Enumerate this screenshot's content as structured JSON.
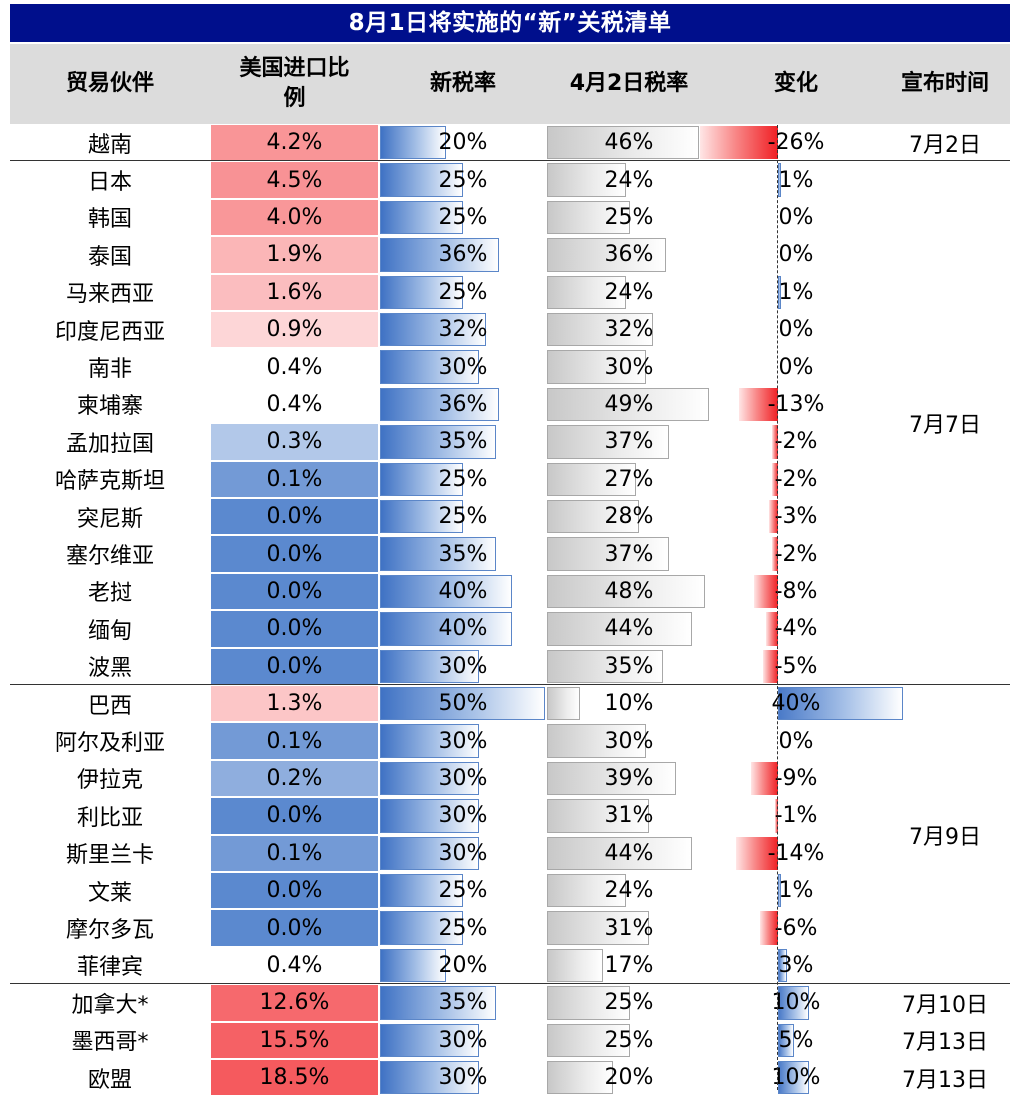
{
  "title": "8月1日将实施的“新”关税清单",
  "headers": {
    "partner": "贸易伙伴",
    "share_line1": "美国进口比",
    "share_line2": "例",
    "new_rate": "新税率",
    "apr_rate": "4月2日税率",
    "change": "变化",
    "date": "宣布时间"
  },
  "chart_data": {
    "type": "table",
    "title": "8月1日将实施的“新”关税清单",
    "columns": [
      "贸易伙伴",
      "美国进口比例",
      "新税率",
      "4月2日税率",
      "变化",
      "宣布时间"
    ],
    "rows": [
      {
        "partner": "越南",
        "share": "4.2%",
        "share_value": 4.2,
        "new_rate": "20%",
        "new_value": 20,
        "apr_rate": "46%",
        "apr_value": 46,
        "change": "-26%",
        "change_value": -26
      },
      {
        "partner": "日本",
        "share": "4.5%",
        "share_value": 4.5,
        "new_rate": "25%",
        "new_value": 25,
        "apr_rate": "24%",
        "apr_value": 24,
        "change": "1%",
        "change_value": 1
      },
      {
        "partner": "韩国",
        "share": "4.0%",
        "share_value": 4.0,
        "new_rate": "25%",
        "new_value": 25,
        "apr_rate": "25%",
        "apr_value": 25,
        "change": "0%",
        "change_value": 0
      },
      {
        "partner": "泰国",
        "share": "1.9%",
        "share_value": 1.9,
        "new_rate": "36%",
        "new_value": 36,
        "apr_rate": "36%",
        "apr_value": 36,
        "change": "0%",
        "change_value": 0
      },
      {
        "partner": "马来西亚",
        "share": "1.6%",
        "share_value": 1.6,
        "new_rate": "25%",
        "new_value": 25,
        "apr_rate": "24%",
        "apr_value": 24,
        "change": "1%",
        "change_value": 1
      },
      {
        "partner": "印度尼西亚",
        "share": "0.9%",
        "share_value": 0.9,
        "new_rate": "32%",
        "new_value": 32,
        "apr_rate": "32%",
        "apr_value": 32,
        "change": "0%",
        "change_value": 0
      },
      {
        "partner": "南非",
        "share": "0.4%",
        "share_value": 0.4,
        "new_rate": "30%",
        "new_value": 30,
        "apr_rate": "30%",
        "apr_value": 30,
        "change": "0%",
        "change_value": 0
      },
      {
        "partner": "柬埔寨",
        "share": "0.4%",
        "share_value": 0.4,
        "new_rate": "36%",
        "new_value": 36,
        "apr_rate": "49%",
        "apr_value": 49,
        "change": "-13%",
        "change_value": -13
      },
      {
        "partner": "孟加拉国",
        "share": "0.3%",
        "share_value": 0.3,
        "new_rate": "35%",
        "new_value": 35,
        "apr_rate": "37%",
        "apr_value": 37,
        "change": "-2%",
        "change_value": -2
      },
      {
        "partner": "哈萨克斯坦",
        "share": "0.1%",
        "share_value": 0.1,
        "new_rate": "25%",
        "new_value": 25,
        "apr_rate": "27%",
        "apr_value": 27,
        "change": "-2%",
        "change_value": -2
      },
      {
        "partner": "突尼斯",
        "share": "0.0%",
        "share_value": 0.0,
        "new_rate": "25%",
        "new_value": 25,
        "apr_rate": "28%",
        "apr_value": 28,
        "change": "-3%",
        "change_value": -3
      },
      {
        "partner": "塞尔维亚",
        "share": "0.0%",
        "share_value": 0.0,
        "new_rate": "35%",
        "new_value": 35,
        "apr_rate": "37%",
        "apr_value": 37,
        "change": "-2%",
        "change_value": -2
      },
      {
        "partner": "老挝",
        "share": "0.0%",
        "share_value": 0.0,
        "new_rate": "40%",
        "new_value": 40,
        "apr_rate": "48%",
        "apr_value": 48,
        "change": "-8%",
        "change_value": -8
      },
      {
        "partner": "缅甸",
        "share": "0.0%",
        "share_value": 0.0,
        "new_rate": "40%",
        "new_value": 40,
        "apr_rate": "44%",
        "apr_value": 44,
        "change": "-4%",
        "change_value": -4
      },
      {
        "partner": "波黑",
        "share": "0.0%",
        "share_value": 0.0,
        "new_rate": "30%",
        "new_value": 30,
        "apr_rate": "35%",
        "apr_value": 35,
        "change": "-5%",
        "change_value": -5
      },
      {
        "partner": "巴西",
        "share": "1.3%",
        "share_value": 1.3,
        "new_rate": "50%",
        "new_value": 50,
        "apr_rate": "10%",
        "apr_value": 10,
        "change": "40%",
        "change_value": 40
      },
      {
        "partner": "阿尔及利亚",
        "share": "0.1%",
        "share_value": 0.1,
        "new_rate": "30%",
        "new_value": 30,
        "apr_rate": "30%",
        "apr_value": 30,
        "change": "0%",
        "change_value": 0
      },
      {
        "partner": "伊拉克",
        "share": "0.2%",
        "share_value": 0.2,
        "new_rate": "30%",
        "new_value": 30,
        "apr_rate": "39%",
        "apr_value": 39,
        "change": "-9%",
        "change_value": -9
      },
      {
        "partner": "利比亚",
        "share": "0.0%",
        "share_value": 0.0,
        "new_rate": "30%",
        "new_value": 30,
        "apr_rate": "31%",
        "apr_value": 31,
        "change": "-1%",
        "change_value": -1
      },
      {
        "partner": "斯里兰卡",
        "share": "0.1%",
        "share_value": 0.1,
        "new_rate": "30%",
        "new_value": 30,
        "apr_rate": "44%",
        "apr_value": 44,
        "change": "-14%",
        "change_value": -14
      },
      {
        "partner": "文莱",
        "share": "0.0%",
        "share_value": 0.0,
        "new_rate": "25%",
        "new_value": 25,
        "apr_rate": "24%",
        "apr_value": 24,
        "change": "1%",
        "change_value": 1
      },
      {
        "partner": "摩尔多瓦",
        "share": "0.0%",
        "share_value": 0.0,
        "new_rate": "25%",
        "new_value": 25,
        "apr_rate": "31%",
        "apr_value": 31,
        "change": "-6%",
        "change_value": -6
      },
      {
        "partner": "菲律宾",
        "share": "0.4%",
        "share_value": 0.4,
        "new_rate": "20%",
        "new_value": 20,
        "apr_rate": "17%",
        "apr_value": 17,
        "change": "3%",
        "change_value": 3
      },
      {
        "partner": "加拿大*",
        "share": "12.6%",
        "share_value": 12.6,
        "new_rate": "35%",
        "new_value": 35,
        "apr_rate": "25%",
        "apr_value": 25,
        "change": "10%",
        "change_value": 10
      },
      {
        "partner": "墨西哥*",
        "share": "15.5%",
        "share_value": 15.5,
        "new_rate": "30%",
        "new_value": 30,
        "apr_rate": "25%",
        "apr_value": 25,
        "change": "5%",
        "change_value": 5
      },
      {
        "partner": "欧盟",
        "share": "18.5%",
        "share_value": 18.5,
        "new_rate": "30%",
        "new_value": 30,
        "apr_rate": "20%",
        "apr_value": 20,
        "change": "10%",
        "change_value": 10
      }
    ],
    "date_groups": [
      {
        "label": "7月2日",
        "from": 0,
        "to": 0
      },
      {
        "label": "7月7日",
        "from": 1,
        "to": 14
      },
      {
        "label": "7月9日",
        "from": 15,
        "to": 22
      },
      {
        "label": "7月10日",
        "from": 23,
        "to": 23
      },
      {
        "label": "7月13日",
        "from": 24,
        "to": 24
      },
      {
        "label": "7月13日",
        "from": 25,
        "to": 25
      }
    ]
  },
  "colors": {
    "title_bg": "#000f8c",
    "header_bg": "#dcdcdc",
    "share_high": "#f55a5e",
    "share_mid": "#ffffff",
    "share_low": "#5b89cf",
    "bar_blue": "#3f72c4",
    "bar_gray": "#c8c8c8",
    "bar_red": "#f01f24"
  }
}
